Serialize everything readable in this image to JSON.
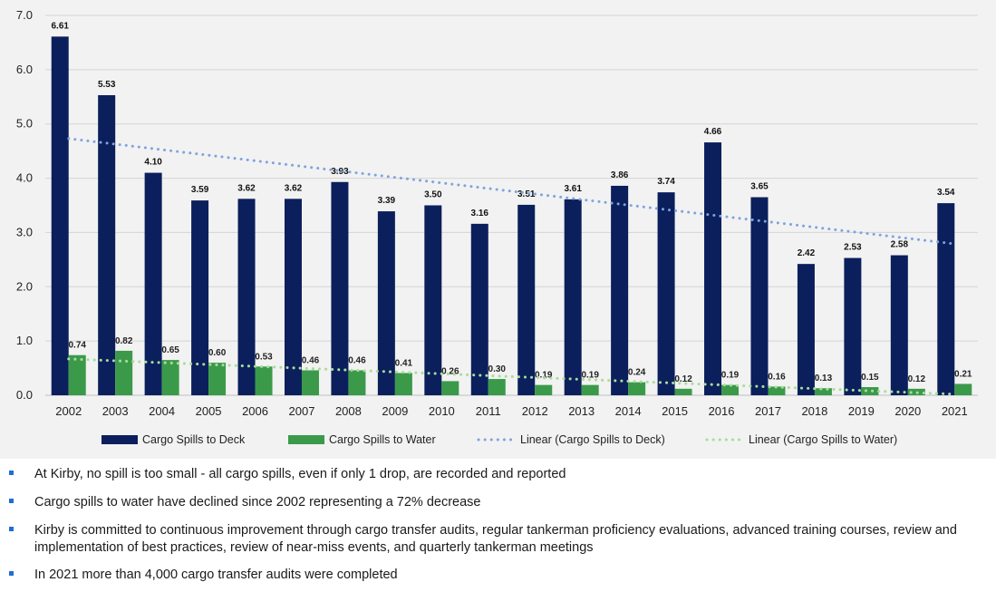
{
  "chart_data": {
    "type": "bar",
    "title": "",
    "xlabel": "",
    "ylabel": "",
    "ylim": [
      0,
      7.0
    ],
    "yticks": [
      "0.0",
      "1.0",
      "2.0",
      "3.0",
      "4.0",
      "5.0",
      "6.0",
      "7.0"
    ],
    "grid": true,
    "legend_position": "bottom",
    "categories": [
      "2002",
      "2003",
      "2004",
      "2005",
      "2006",
      "2007",
      "2008",
      "2009",
      "2010",
      "2011",
      "2012",
      "2013",
      "2014",
      "2015",
      "2016",
      "2017",
      "2018",
      "2019",
      "2020",
      "2021"
    ],
    "series": [
      {
        "name": "Cargo Spills to Deck",
        "color": "#0b1f5c",
        "values": [
          6.61,
          5.53,
          4.1,
          3.59,
          3.62,
          3.62,
          3.93,
          3.39,
          3.5,
          3.16,
          3.51,
          3.61,
          3.86,
          3.74,
          4.66,
          3.65,
          2.42,
          2.53,
          2.58,
          3.54
        ],
        "labels": [
          "6.61",
          "5.53",
          "4.10",
          "3.59",
          "3.62",
          "3.62",
          "3.93",
          "3.39",
          "3.50",
          "3.16",
          "3.51",
          "3.61",
          "3.86",
          "3.74",
          "4.66",
          "3.65",
          "2.42",
          "2.53",
          "2.58",
          "3.54"
        ]
      },
      {
        "name": "Cargo Spills to Water",
        "color": "#3b9a4a",
        "values": [
          0.74,
          0.82,
          0.65,
          0.6,
          0.53,
          0.46,
          0.46,
          0.41,
          0.26,
          0.3,
          0.19,
          0.19,
          0.24,
          0.12,
          0.19,
          0.16,
          0.13,
          0.15,
          0.12,
          0.21
        ],
        "labels": [
          "0.74",
          "0.82",
          "0.65",
          "0.60",
          "0.53",
          "0.46",
          "0.46",
          "0.41",
          "0.26",
          "0.30",
          "0.19",
          "0.19",
          "0.24",
          "0.12",
          "0.19",
          "0.16",
          "0.13",
          "0.15",
          "0.12",
          "0.21"
        ]
      }
    ],
    "trendlines": [
      {
        "name": "Linear (Cargo Spills to Deck)",
        "color": "#7fa3e0",
        "start": 4.73,
        "end": 2.79
      },
      {
        "name": "Linear (Cargo Spills to Water)",
        "color": "#a9dc9a",
        "start": 0.67,
        "end": 0.02
      }
    ]
  },
  "bullets": [
    "At Kirby, no spill is too small - all cargo spills, even if only 1 drop, are recorded and reported",
    "Cargo spills to water have declined since 2002 representing a 72% decrease",
    "Kirby is committed to continuous improvement through cargo transfer audits, regular tankerman proficiency evaluations, advanced training courses, review and implementation of best practices, review of near-miss events, and quarterly tankerman meetings",
    "In 2021 more than 4,000 cargo transfer audits were completed"
  ],
  "colors": {
    "accent": "#1f6fd1",
    "panel": "#f2f2f2"
  }
}
